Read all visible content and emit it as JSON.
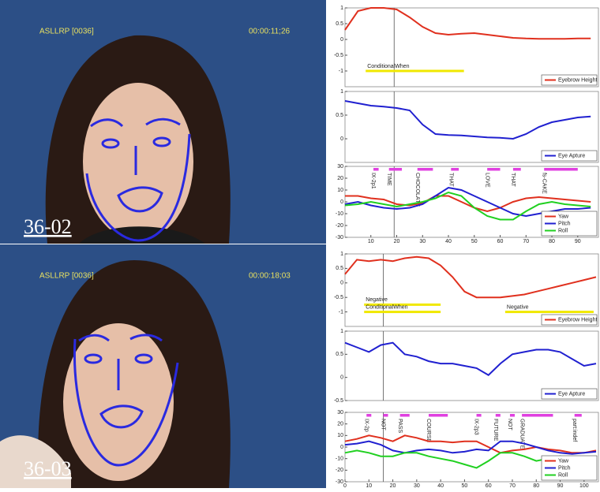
{
  "panels": [
    {
      "header": "ASLLRP [0036]",
      "timecode": "00:00:11;26",
      "caption": "36-02"
    },
    {
      "header": "ASLLRP [0036]",
      "timecode": "00:00:18;03",
      "caption": "36-03"
    }
  ],
  "chart_data": [
    {
      "type": "line",
      "x": [
        0,
        5,
        10,
        15,
        20,
        25,
        30,
        35,
        40,
        45,
        50,
        55,
        60,
        65,
        70,
        75,
        80,
        85,
        90,
        95
      ],
      "series": [
        {
          "name": "Eyebrow Height",
          "color": "#e0301e",
          "values": [
            0.3,
            0.9,
            1,
            1,
            0.95,
            0.7,
            0.4,
            0.2,
            0.15,
            0.18,
            0.2,
            0.15,
            0.1,
            0.05,
            0.03,
            0.02,
            0.02,
            0.02,
            0.03,
            0.03
          ]
        }
      ],
      "xlim": [
        0,
        98
      ],
      "ylim": [
        -1.5,
        1
      ],
      "yticks": [
        1,
        0.5,
        0,
        -0.5,
        -1
      ],
      "cursor_x": 19,
      "annotations": [
        {
          "label": "ConditionalWhen",
          "start": 8,
          "end": 46,
          "y": -1
        }
      ],
      "legend": "lower right"
    },
    {
      "type": "line",
      "x": [
        0,
        5,
        10,
        15,
        20,
        25,
        30,
        35,
        40,
        45,
        50,
        55,
        60,
        65,
        70,
        75,
        80,
        85,
        90,
        95
      ],
      "series": [
        {
          "name": "Eye Apture",
          "color": "#2020d0",
          "values": [
            0.8,
            0.75,
            0.7,
            0.68,
            0.65,
            0.6,
            0.3,
            0.1,
            0.08,
            0.07,
            0.05,
            0.03,
            0.02,
            0.0,
            0.1,
            0.25,
            0.35,
            0.4,
            0.45,
            0.47
          ]
        }
      ],
      "xlim": [
        0,
        98
      ],
      "ylim": [
        -0.5,
        1
      ],
      "yticks": [
        1,
        0.5,
        0
      ],
      "cursor_x": 19,
      "legend": "lower right"
    },
    {
      "type": "line",
      "x": [
        0,
        5,
        10,
        15,
        20,
        25,
        30,
        35,
        40,
        45,
        50,
        55,
        60,
        65,
        70,
        75,
        80,
        85,
        90,
        95
      ],
      "series": [
        {
          "name": "Yaw",
          "color": "#e0301e",
          "values": [
            5,
            5,
            3,
            2,
            -2,
            -3,
            -1,
            5,
            5,
            0,
            -5,
            -8,
            -5,
            0,
            3,
            4,
            3,
            2,
            1,
            0
          ]
        },
        {
          "name": "Pitch",
          "color": "#2020d0",
          "values": [
            -2,
            0,
            -3,
            -5,
            -6,
            -5,
            -2,
            5,
            12,
            10,
            5,
            0,
            -5,
            -10,
            -12,
            -10,
            -8,
            -6,
            -6,
            -5
          ]
        },
        {
          "name": "Roll",
          "color": "#20d020",
          "values": [
            -3,
            -2,
            0,
            -2,
            -4,
            -2,
            0,
            3,
            8,
            5,
            -5,
            -12,
            -15,
            -15,
            -8,
            -2,
            0,
            -2,
            -3,
            -4
          ]
        }
      ],
      "xlim": [
        0,
        98
      ],
      "ylim": [
        -30,
        30
      ],
      "yticks": [
        30,
        20,
        10,
        0,
        -10,
        -20,
        -30
      ],
      "xticks": [
        10,
        20,
        30,
        40,
        50,
        60,
        70,
        80,
        90
      ],
      "cursor_x": 19,
      "glosses": [
        {
          "label": "IX-2p1",
          "start": 11,
          "end": 13
        },
        {
          "label": "TIME",
          "start": 17,
          "end": 22
        },
        {
          "label": "CHOCOLATE",
          "start": 28,
          "end": 34
        },
        {
          "label": "THAT",
          "start": 41,
          "end": 44
        },
        {
          "label": "LOVE",
          "start": 55,
          "end": 60
        },
        {
          "label": "THAT",
          "start": 65,
          "end": 68
        },
        {
          "label": "fs-CAKE",
          "start": 77,
          "end": 90
        }
      ],
      "legend": "lower right"
    },
    {
      "type": "line",
      "x": [
        0,
        5,
        10,
        15,
        20,
        25,
        30,
        35,
        40,
        45,
        50,
        55,
        60,
        65,
        70,
        75,
        80,
        85,
        90,
        95,
        100,
        105
      ],
      "series": [
        {
          "name": "Eyebrow Height",
          "color": "#e0301e",
          "values": [
            0.3,
            0.8,
            0.75,
            0.8,
            0.75,
            0.85,
            0.9,
            0.85,
            0.6,
            0.2,
            -0.3,
            -0.5,
            -0.5,
            -0.5,
            -0.45,
            -0.4,
            -0.3,
            -0.2,
            -0.1,
            0,
            0.1,
            0.2
          ]
        }
      ],
      "xlim": [
        0,
        106
      ],
      "ylim": [
        -1.5,
        1
      ],
      "yticks": [
        1,
        0.5,
        0,
        -0.5,
        -1
      ],
      "cursor_x": 16,
      "annotations": [
        {
          "label": "Negative",
          "start": 8,
          "end": 40,
          "y": -0.75
        },
        {
          "label": "ConditionalWhen",
          "start": 8,
          "end": 40,
          "y": -1
        },
        {
          "label": "Negative",
          "start": 67,
          "end": 104,
          "y": -1
        }
      ],
      "legend": "lower right"
    },
    {
      "type": "line",
      "x": [
        0,
        5,
        10,
        15,
        20,
        25,
        30,
        35,
        40,
        45,
        50,
        55,
        60,
        65,
        70,
        75,
        80,
        85,
        90,
        95,
        100,
        105
      ],
      "series": [
        {
          "name": "Eye Apture",
          "color": "#2020d0",
          "values": [
            0.75,
            0.65,
            0.55,
            0.7,
            0.75,
            0.5,
            0.45,
            0.35,
            0.3,
            0.3,
            0.25,
            0.2,
            0.05,
            0.3,
            0.5,
            0.55,
            0.6,
            0.6,
            0.55,
            0.4,
            0.25,
            0.3
          ]
        }
      ],
      "xlim": [
        0,
        106
      ],
      "ylim": [
        -0.5,
        1
      ],
      "yticks": [
        1,
        0.5,
        0,
        -0.5
      ],
      "cursor_x": 16,
      "legend": "lower right"
    },
    {
      "type": "line",
      "x": [
        0,
        5,
        10,
        15,
        20,
        25,
        30,
        35,
        40,
        45,
        50,
        55,
        60,
        65,
        70,
        75,
        80,
        85,
        90,
        95,
        100,
        105
      ],
      "series": [
        {
          "name": "Yaw",
          "color": "#e0301e",
          "values": [
            5,
            7,
            10,
            8,
            5,
            10,
            8,
            5,
            5,
            4,
            5,
            5,
            0,
            -5,
            -3,
            -2,
            0,
            -2,
            -3,
            -5,
            -5,
            -3
          ]
        },
        {
          "name": "Pitch",
          "color": "#2020d0",
          "values": [
            2,
            3,
            5,
            2,
            -3,
            -5,
            -3,
            -2,
            -3,
            -5,
            -4,
            -2,
            -3,
            5,
            5,
            3,
            0,
            -3,
            -5,
            -6,
            -5,
            -4
          ]
        },
        {
          "name": "Roll",
          "color": "#20d020",
          "values": [
            -5,
            -3,
            -5,
            -8,
            -8,
            -5,
            -5,
            -8,
            -10,
            -12,
            -15,
            -18,
            -12,
            -5,
            -5,
            -8,
            -12,
            -10,
            -8,
            -10,
            -15,
            -10
          ]
        }
      ],
      "xlim": [
        0,
        106
      ],
      "ylim": [
        -30,
        30
      ],
      "yticks": [
        30,
        20,
        10,
        0,
        -10,
        -20,
        -30
      ],
      "xticks": [
        0,
        10,
        20,
        30,
        40,
        50,
        60,
        70,
        80,
        90,
        100
      ],
      "cursor_x": 16,
      "glosses": [
        {
          "label": "IX-2p",
          "start": 9,
          "end": 11
        },
        {
          "label": "NOT",
          "start": 16,
          "end": 18
        },
        {
          "label": "PASS",
          "start": 23,
          "end": 27
        },
        {
          "label": "COURSE",
          "start": 35,
          "end": 43
        },
        {
          "label": "IX-2p3",
          "start": 55,
          "end": 57
        },
        {
          "label": "FUTURE",
          "start": 63,
          "end": 65
        },
        {
          "label": "NOT",
          "start": 69,
          "end": 71
        },
        {
          "label": "GRADUATE",
          "start": 74,
          "end": 87
        },
        {
          "label": "part:indef",
          "start": 96,
          "end": 99
        }
      ],
      "legend": "lower right"
    }
  ]
}
